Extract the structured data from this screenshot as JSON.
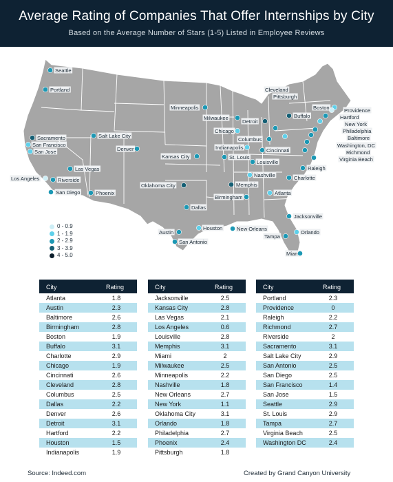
{
  "header": {
    "title": "Average Rating of Companies That Offer Internships by City",
    "subtitle": "Based on the Average Number of Stars (1-5) Listed in Employee Reviews"
  },
  "legend": {
    "items": [
      {
        "label": "0 - 0.9",
        "color": "#cdeef6"
      },
      {
        "label": "1 - 1.9",
        "color": "#5fd0ea"
      },
      {
        "label": "2 - 2.9",
        "color": "#1c98b4"
      },
      {
        "label": "3 - 3.9",
        "color": "#155f74"
      },
      {
        "label": "4 - 5.0",
        "color": "#0b1e2c"
      }
    ]
  },
  "map_colors": {
    "land": "#a6a6a6",
    "borders": "#ffffff",
    "label_bg": "#eef0f2"
  },
  "chart_data": {
    "type": "table",
    "title": "Average Rating of Companies That Offer Internships by City",
    "subtitle": "Based on the Average Number of Stars (1-5) Listed in Employee Reviews",
    "columns": [
      "City",
      "Rating"
    ],
    "tables": [
      {
        "rows": [
          [
            "Atlanta",
            "1.8"
          ],
          [
            "Austin",
            "2.3"
          ],
          [
            "Baltimore",
            "2.6"
          ],
          [
            "Birmingham",
            "2.8"
          ],
          [
            "Boston",
            "1.9"
          ],
          [
            "Buffalo",
            "3.1"
          ],
          [
            "Charlotte",
            "2.9"
          ],
          [
            "Chicago",
            "1.9"
          ],
          [
            "Cincinnati",
            "2.6"
          ],
          [
            "Cleveland",
            "2.8"
          ],
          [
            "Columbus",
            "2.5"
          ],
          [
            "Dallas",
            "2.2"
          ],
          [
            "Denver",
            "2.6"
          ],
          [
            "Detroit",
            "3.1"
          ],
          [
            "Hartford",
            "2.2"
          ],
          [
            "Houston",
            "1.5"
          ],
          [
            "Indianapolis",
            "1.9"
          ]
        ]
      },
      {
        "rows": [
          [
            "Jacksonville",
            "2.5"
          ],
          [
            "Kansas City",
            "2.8"
          ],
          [
            "Las Vegas",
            "2.1"
          ],
          [
            "Los Angeles",
            "0.6"
          ],
          [
            "Louisville",
            "2.8"
          ],
          [
            "Memphis",
            "3.1"
          ],
          [
            "Miami",
            "2"
          ],
          [
            "Milwaukee",
            "2.5"
          ],
          [
            "Minneapolis",
            "2.2"
          ],
          [
            "Nashville",
            "1.8"
          ],
          [
            "New Orleans",
            "2.7"
          ],
          [
            "New York",
            "1.1"
          ],
          [
            "Oklahoma City",
            "3.1"
          ],
          [
            "Orlando",
            "1.8"
          ],
          [
            "Philadelphia",
            "2.7"
          ],
          [
            "Phoenix",
            "2.4"
          ],
          [
            "Pittsburgh",
            "1.8"
          ]
        ]
      },
      {
        "rows": [
          [
            "Portland",
            "2.3"
          ],
          [
            "Providence",
            "0"
          ],
          [
            "Raleigh",
            "2.2"
          ],
          [
            "Richmond",
            "2.7"
          ],
          [
            "Riverside",
            "2"
          ],
          [
            "Sacramento",
            "3.1"
          ],
          [
            "Salt Lake City",
            "2.9"
          ],
          [
            "San Antonio",
            "2.5"
          ],
          [
            "San Diego",
            "2.5"
          ],
          [
            "San Francisco",
            "1.4"
          ],
          [
            "San Jose",
            "1.5"
          ],
          [
            "Seattle",
            "2.9"
          ],
          [
            "St. Louis",
            "2.9"
          ],
          [
            "Tampa",
            "2.7"
          ],
          [
            "Virginia Beach",
            "2.5"
          ],
          [
            "Washington DC",
            "2.4"
          ]
        ]
      }
    ],
    "map_labels": {
      "Atlanta": "Atlanta",
      "Austin": "Austin",
      "Baltimore": "Baltimore",
      "Birmingham": "Birmingham",
      "Boston": "Boston",
      "Buffalo": "Buffalo",
      "Charlotte": "Charlotte",
      "Chicago": "Chicago",
      "Cincinnati": "Cincinnati",
      "Cleveland": "Cleveland",
      "Columbus": "Columbus",
      "Dallas": "Dallas",
      "Denver": "Denver",
      "Detroit": "Detroit",
      "Hartford": "Hartford",
      "Houston": "Houston",
      "Indianapolis": "Indianapolis",
      "Jacksonville": "Jacksonville",
      "Kansas City": "Kansas City",
      "Las Vegas": "Las Vegas",
      "Los Angeles": "Los Angeles",
      "Louisville": "Louisville",
      "Memphis": "Memphis",
      "Miami": "Miami",
      "Milwaukee": "Milwaukee",
      "Minneapolis": "Minneapolis",
      "Nashville": "Nashville",
      "New Orleans": "New Orleans",
      "New York": "New York",
      "Oklahoma City": "Oklahoma City",
      "Orlando": "Orlando",
      "Philadelphia": "Philadelphia",
      "Phoenix": "Phoenix",
      "Pittsburgh": "Pittsburgh",
      "Portland": "Portland",
      "Providence": "Providence",
      "Raleigh": "Raleigh",
      "Richmond": "Richmond",
      "Riverside": "Riverside",
      "Sacramento": "Sacramento",
      "Salt Lake City": "Salt Lake City",
      "San Antonio": "San Antonio",
      "San Diego": "San Diego",
      "San Francisco": "San Francisco",
      "San Jose": "San Jose",
      "Seattle": "Seattle",
      "St. Louis": "St. Louis",
      "Tampa": "Tampa",
      "Virginia Beach": "Virginia Beach",
      "Washington DC": "Washington, DC"
    }
  },
  "footer": {
    "source": "Source: Indeed.com",
    "credit": "Created by Grand Canyon University"
  }
}
